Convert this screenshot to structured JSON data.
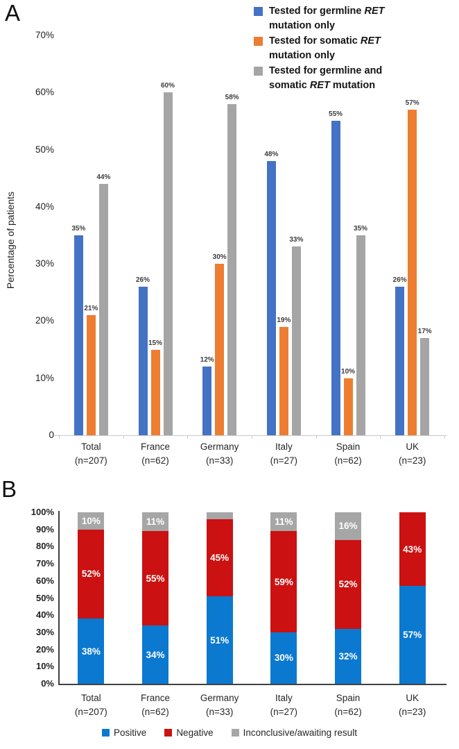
{
  "panel_a": {
    "panel_label": "A",
    "y_axis_title": "Percentage of patients",
    "y_ticks": [
      "70%",
      "60%",
      "50%",
      "40%",
      "30%",
      "20%",
      "10%",
      "0"
    ]
  },
  "panel_b": {
    "panel_label": "B",
    "y_ticks": [
      "100%",
      "90%",
      "80%",
      "70%",
      "60%",
      "50%",
      "40%",
      "30%",
      "20%",
      "10%",
      "0%"
    ]
  },
  "chart_data": [
    {
      "type": "bar",
      "panel": "A",
      "title": "",
      "xlabel": "",
      "ylabel": "Percentage of patients",
      "ylim": [
        0,
        70
      ],
      "grid": false,
      "legend_position": "top-right",
      "value_label_suffix": "%",
      "categories": [
        {
          "label": "Total",
          "n": "(n=207)"
        },
        {
          "label": "France",
          "n": "(n=62)"
        },
        {
          "label": "Germany",
          "n": "(n=33)"
        },
        {
          "label": "Italy",
          "n": "(n=27)"
        },
        {
          "label": "Spain",
          "n": "(n=62)"
        },
        {
          "label": "UK",
          "n": "(n=23)"
        }
      ],
      "series": [
        {
          "name": "Tested for germline RET mutation only",
          "color": "#4472C4",
          "values": [
            35,
            26,
            12,
            48,
            55,
            26
          ]
        },
        {
          "name": "Tested for somatic RET mutation only",
          "color": "#ED7D31",
          "values": [
            21,
            15,
            30,
            19,
            10,
            57
          ]
        },
        {
          "name": "Tested for germline and somatic RET mutation",
          "color": "#A5A5A5",
          "values": [
            44,
            60,
            58,
            33,
            35,
            17
          ]
        }
      ]
    },
    {
      "type": "stacked-bar",
      "panel": "B",
      "title": "",
      "xlabel": "",
      "ylabel": "",
      "ylim": [
        0,
        100
      ],
      "grid": false,
      "legend_position": "bottom",
      "value_label_suffix": "%",
      "min_label_value": 10,
      "categories": [
        {
          "label": "Total",
          "n": "(n=207)"
        },
        {
          "label": "France",
          "n": "(n=62)"
        },
        {
          "label": "Germany",
          "n": "(n=33)"
        },
        {
          "label": "Italy",
          "n": "(n=27)"
        },
        {
          "label": "Spain",
          "n": "(n=62)"
        },
        {
          "label": "UK",
          "n": "(n=23)"
        }
      ],
      "series": [
        {
          "name": "Positive",
          "color": "#0B79CF",
          "values": [
            38,
            34,
            51,
            30,
            32,
            57
          ]
        },
        {
          "name": "Negative",
          "color": "#CB1111",
          "values": [
            52,
            55,
            45,
            59,
            52,
            43
          ]
        },
        {
          "name": "Inconclusive/awaiting result",
          "color": "#A6A6A6",
          "values": [
            10,
            11,
            4,
            11,
            16,
            0
          ]
        }
      ]
    }
  ]
}
